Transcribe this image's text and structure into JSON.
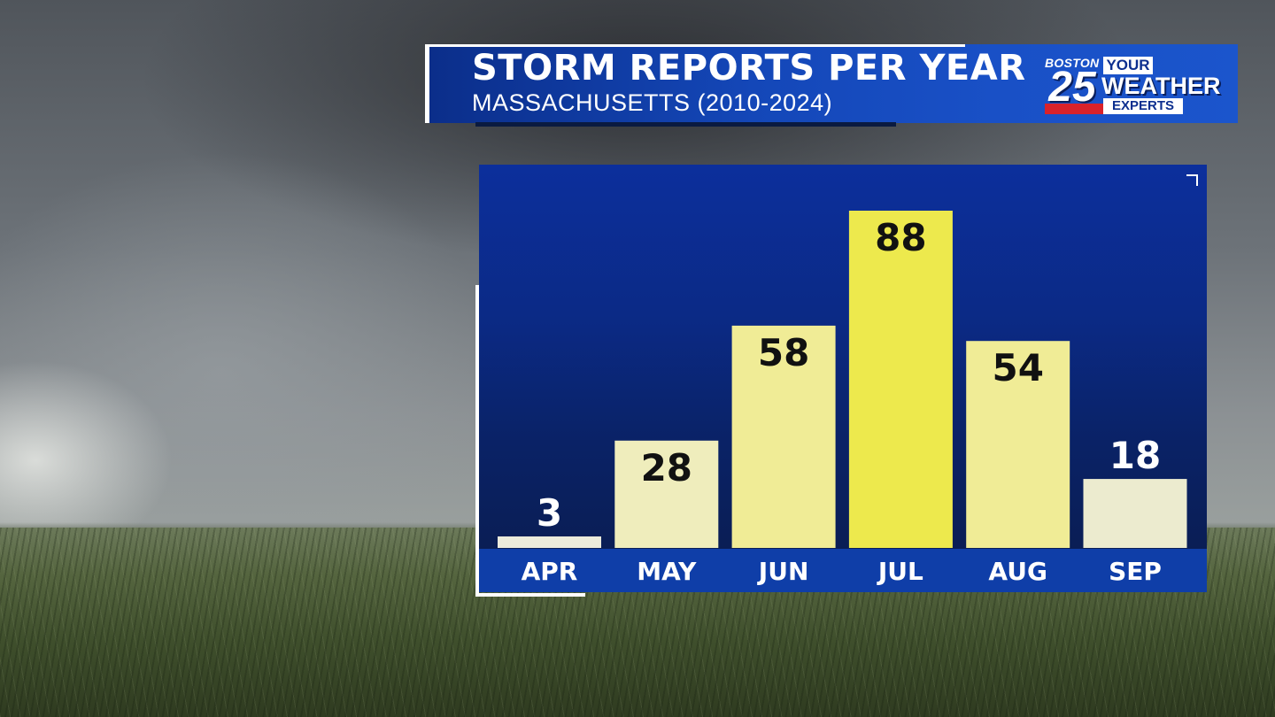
{
  "banner": {
    "title": "STORM REPORTS PER YEAR",
    "subtitle": "MASSACHUSETTS (2010-2024)"
  },
  "logo": {
    "city": "BOSTON",
    "number": "25",
    "line1": "YOUR",
    "line2": "WEATHER",
    "line3": "EXPERTS"
  },
  "chart_data": {
    "type": "bar",
    "title": "STORM REPORTS PER YEAR",
    "subtitle": "MASSACHUSETTS (2010-2024)",
    "categories": [
      "APR",
      "MAY",
      "JUN",
      "JUL",
      "AUG",
      "SEP"
    ],
    "values": [
      3,
      28,
      58,
      88,
      54,
      18
    ],
    "xlabel": "",
    "ylabel": "",
    "ylim": [
      0,
      100
    ],
    "grid": false,
    "legend": "none",
    "colors": [
      "#ecebdc",
      "#efedbc",
      "#f0ec96",
      "#ede94d",
      "#f0ec96",
      "#ecebcf"
    ],
    "value_label_colors": [
      "#ffffff",
      "#111111",
      "#111111",
      "#111111",
      "#111111",
      "#ffffff"
    ]
  }
}
